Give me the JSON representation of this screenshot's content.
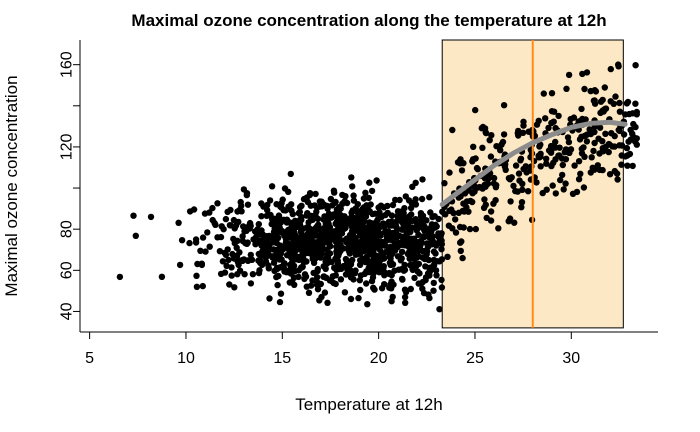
{
  "chart_data": {
    "type": "scatter",
    "title": "Maximal ozone concentration along the temperature at 12h",
    "xlabel": "Temperature at 12h",
    "ylabel": "Maximal ozone concentration",
    "xlim": [
      4.5,
      34.5
    ],
    "ylim": [
      30,
      172
    ],
    "xticks": [
      5,
      10,
      15,
      20,
      25,
      30
    ],
    "yticks": [
      40,
      60,
      80,
      100,
      120,
      140,
      160
    ],
    "ytick_labels_shown": [
      40,
      60,
      80,
      120,
      160
    ],
    "grid": false,
    "n_points": 1500,
    "point_color": "#000000",
    "highlight_region": {
      "x": [
        23.3,
        32.7
      ],
      "y": [
        32,
        172
      ],
      "fill": "#fde8c6",
      "stroke": "#000000"
    },
    "vertical_line": {
      "x": 28,
      "color": "#ff8c1a"
    },
    "smooth_curve": {
      "color": "#8c8c8c",
      "points": [
        [
          23.3,
          92
        ],
        [
          24,
          97
        ],
        [
          25,
          104
        ],
        [
          26,
          111
        ],
        [
          27,
          117
        ],
        [
          28,
          122
        ],
        [
          29,
          126
        ],
        [
          30,
          129.5
        ],
        [
          31,
          131.5
        ],
        [
          32,
          132
        ],
        [
          32.8,
          131
        ]
      ]
    }
  }
}
